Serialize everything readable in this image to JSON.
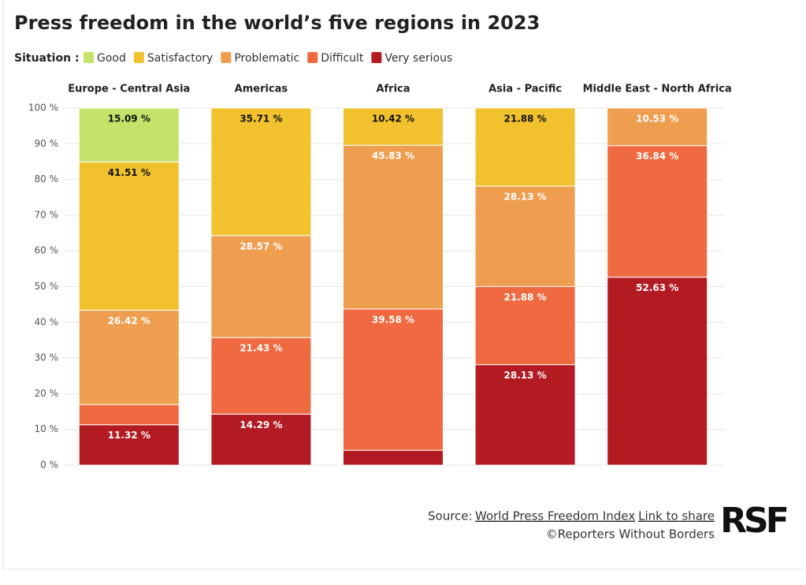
{
  "chart_data": {
    "type": "stacked_bar",
    "title": "Press freedom in the world’s five regions in 2023",
    "legend_title": "Situation :",
    "categories": [
      "Europe - Central Asia",
      "Americas",
      "Africa",
      "Asia - Pacific",
      "Middle East - North Africa"
    ],
    "series": [
      {
        "name": "Good",
        "color": "#c3e36a",
        "values": [
          15.09,
          0,
          0,
          0,
          0
        ],
        "value_labels": [
          "15.09 %",
          null,
          null,
          null,
          null
        ]
      },
      {
        "name": "Satisfactory",
        "color": "#f2c12e",
        "values": [
          41.51,
          35.71,
          10.42,
          21.88,
          0
        ],
        "value_labels": [
          "41.51 %",
          "35.71 %",
          "10.42 %",
          "21.88 %",
          null
        ]
      },
      {
        "name": "Problematic",
        "color": "#ef9e50",
        "values": [
          26.42,
          28.57,
          45.83,
          28.13,
          10.53
        ],
        "value_labels": [
          "26.42 %",
          "28.57 %",
          "45.83 %",
          "28.13 %",
          "10.53 %"
        ]
      },
      {
        "name": "Difficult",
        "color": "#ef6a40",
        "values": [
          5.66,
          21.43,
          39.58,
          21.88,
          36.84
        ],
        "value_labels": [
          null,
          "21.43 %",
          "39.58 %",
          "21.88 %",
          "36.84 %"
        ]
      },
      {
        "name": "Very serious",
        "color": "#b31b23",
        "values": [
          11.32,
          14.29,
          4.17,
          28.13,
          52.63
        ],
        "value_labels": [
          "11.32 %",
          "14.29 %",
          null,
          "28.13 %",
          "52.63 %"
        ]
      }
    ],
    "ylim": [
      0,
      100
    ],
    "yticks": [
      {
        "value": 0,
        "label": "0 %"
      },
      {
        "value": 10,
        "label": "10 %"
      },
      {
        "value": 20,
        "label": "20 %"
      },
      {
        "value": 30,
        "label": "30 %"
      },
      {
        "value": 40,
        "label": "40 %"
      },
      {
        "value": 50,
        "label": "50 %"
      },
      {
        "value": 60,
        "label": "60 %"
      },
      {
        "value": 70,
        "label": "70 %"
      },
      {
        "value": 80,
        "label": "80 %"
      },
      {
        "value": 90,
        "label": "90 %"
      },
      {
        "value": 100,
        "label": "100 %"
      }
    ],
    "grid": true,
    "source_prefix": "Source:",
    "source_link": "World Press Freedom Index",
    "share_link": "Link to share",
    "copyright": "©Reporters Without Borders",
    "logo": "RSF"
  }
}
